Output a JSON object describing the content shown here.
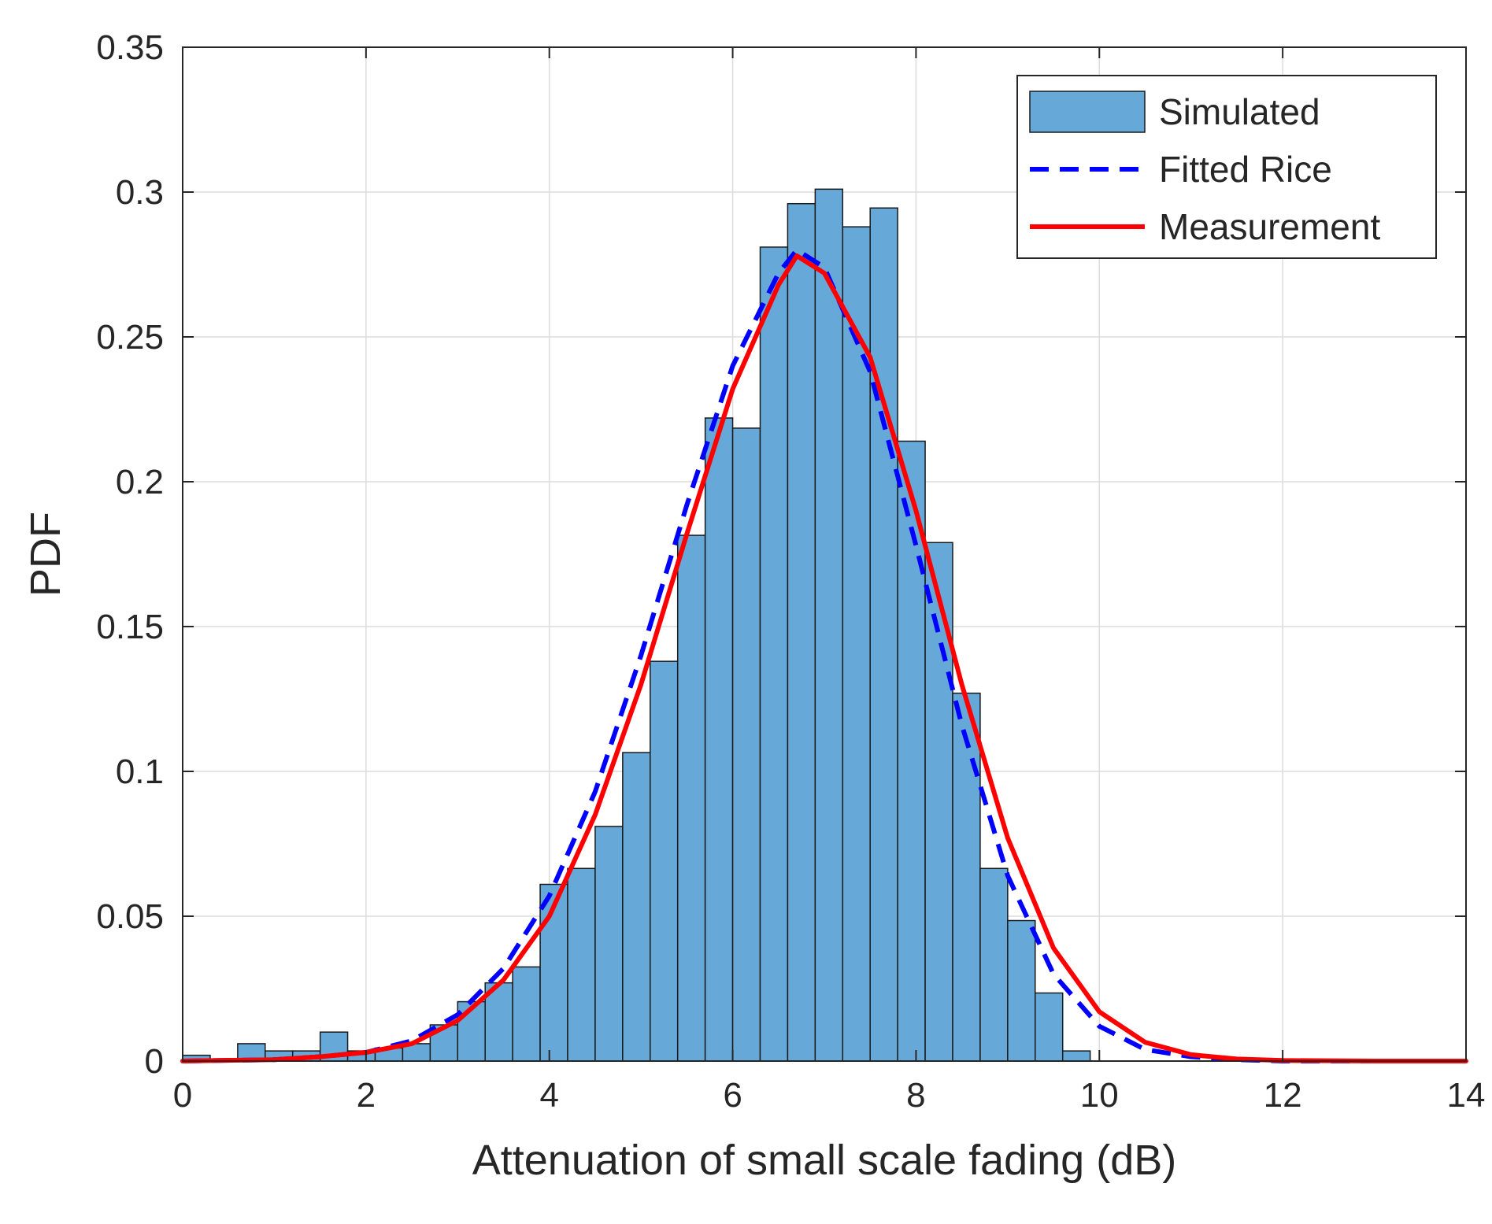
{
  "chart_data": {
    "type": "bar",
    "title": "",
    "xlabel": "Attenuation of small scale fading (dB)",
    "ylabel": "PDF",
    "xlim": [
      0,
      14
    ],
    "ylim": [
      0,
      0.35
    ],
    "grid": true,
    "legend_location": "top-right",
    "x_ticks": [
      0,
      2,
      4,
      6,
      8,
      10,
      12,
      14
    ],
    "x_tick_labels": [
      "0",
      "2",
      "4",
      "6",
      "8",
      "10",
      "12",
      "14"
    ],
    "y_ticks": [
      0,
      0.05,
      0.1,
      0.15,
      0.2,
      0.25,
      0.3,
      0.35
    ],
    "y_tick_labels": [
      "0",
      "0.05",
      "0.1",
      "0.15",
      "0.2",
      "0.25",
      "0.3",
      "0.35"
    ],
    "colors": {
      "histogram_fill": "#66A8D8",
      "histogram_edge": "#1a1a1a",
      "fitted_rice": "#0000FF",
      "measurement": "#FF0000",
      "grid": "#dcdcdc",
      "axis": "#262626"
    },
    "series": [
      {
        "name": "Simulated",
        "kind": "histogram",
        "bin_edges": [
          0,
          0.3,
          0.6,
          0.9,
          1.2,
          1.5,
          1.8,
          2.1,
          2.4,
          2.7,
          3.0,
          3.3,
          3.6,
          3.9,
          4.2,
          4.5,
          4.8,
          5.1,
          5.4,
          5.7,
          6.0,
          6.3,
          6.6,
          6.9,
          7.2,
          7.5,
          7.8,
          8.1,
          8.4,
          8.7,
          9.0,
          9.3,
          9.6,
          9.9
        ],
        "values": [
          0.002,
          0.0,
          0.006,
          0.0035,
          0.0035,
          0.01,
          0.0035,
          0.0045,
          0.006,
          0.0125,
          0.0205,
          0.027,
          0.0325,
          0.061,
          0.0665,
          0.081,
          0.1065,
          0.138,
          0.1815,
          0.222,
          0.2185,
          0.281,
          0.296,
          0.301,
          0.288,
          0.2945,
          0.214,
          0.179,
          0.127,
          0.0665,
          0.0485,
          0.0235,
          0.0035
        ]
      },
      {
        "name": "Fitted Rice",
        "kind": "line",
        "style": "dashed",
        "x": [
          0,
          1,
          1.5,
          2,
          2.5,
          3,
          3.5,
          4,
          4.5,
          5,
          5.5,
          6,
          6.5,
          6.7,
          7,
          7.5,
          8,
          8.5,
          9,
          9.5,
          10,
          10.5,
          11,
          11.5,
          12,
          13,
          14
        ],
        "y": [
          0.0,
          0.0005,
          0.0015,
          0.003,
          0.007,
          0.016,
          0.032,
          0.057,
          0.093,
          0.14,
          0.192,
          0.24,
          0.272,
          0.28,
          0.274,
          0.238,
          0.178,
          0.116,
          0.064,
          0.03,
          0.012,
          0.004,
          0.0015,
          0.0005,
          0.0,
          0.0,
          0.0
        ]
      },
      {
        "name": "Measurement",
        "kind": "line",
        "style": "solid",
        "x": [
          0,
          1,
          1.5,
          2,
          2.5,
          3,
          3.5,
          4,
          4.5,
          5,
          5.5,
          6,
          6.5,
          6.7,
          7,
          7.5,
          8,
          8.5,
          9,
          9.5,
          10,
          10.5,
          11,
          11.5,
          12,
          13,
          14
        ],
        "y": [
          0.0,
          0.0005,
          0.0015,
          0.003,
          0.006,
          0.014,
          0.028,
          0.05,
          0.085,
          0.13,
          0.182,
          0.232,
          0.268,
          0.278,
          0.272,
          0.243,
          0.19,
          0.13,
          0.077,
          0.039,
          0.017,
          0.0065,
          0.0022,
          0.0007,
          0.0002,
          0.0,
          0.0
        ]
      }
    ]
  }
}
